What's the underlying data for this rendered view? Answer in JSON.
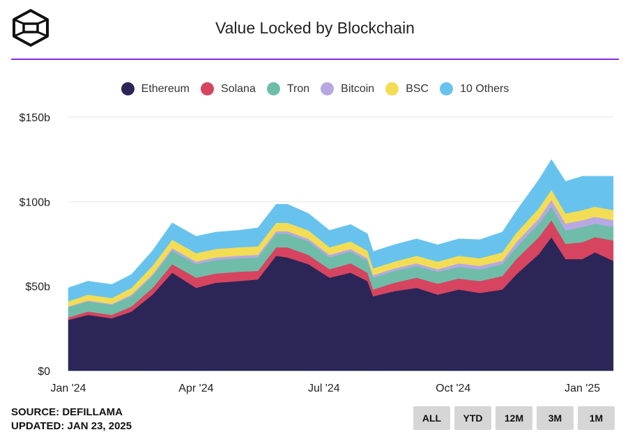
{
  "title": "Value Locked by Blockchain",
  "footer": {
    "source": "SOURCE: DEFILLAMA",
    "updated": "UPDATED: JAN 23, 2025"
  },
  "range_buttons": [
    "ALL",
    "YTD",
    "12M",
    "3M",
    "1M"
  ],
  "colors": {
    "accent_rule": "#8a2be2",
    "grid": "#e6e6e6"
  },
  "icons": {
    "logo": "cube-logo-icon"
  },
  "chart_data": {
    "type": "area",
    "stacked": true,
    "title": "Value Locked by Blockchain",
    "xlabel": "",
    "ylabel": "",
    "ylim": [
      0,
      150
    ],
    "y_unit": "billions USD",
    "y_ticks": [
      "$0",
      "$50b",
      "$100b",
      "$150b"
    ],
    "y_tick_values": [
      0,
      50,
      100,
      150
    ],
    "x_tick_labels": [
      "Jan '24",
      "Apr '24",
      "Jul '24",
      "Oct '24",
      "Jan '25"
    ],
    "x_tick_dates": [
      "2024-01-01",
      "2024-04-01",
      "2024-07-01",
      "2024-10-01",
      "2025-01-01"
    ],
    "x_range": [
      "2024-01-01",
      "2025-01-23"
    ],
    "grid": true,
    "legend_position": "top",
    "x": [
      "2024-01-01",
      "2024-01-15",
      "2024-02-01",
      "2024-02-15",
      "2024-03-01",
      "2024-03-15",
      "2024-04-01",
      "2024-04-15",
      "2024-05-01",
      "2024-05-15",
      "2024-05-28",
      "2024-06-05",
      "2024-06-20",
      "2024-07-05",
      "2024-07-20",
      "2024-08-01",
      "2024-08-05",
      "2024-08-20",
      "2024-09-05",
      "2024-09-20",
      "2024-10-05",
      "2024-10-20",
      "2024-11-05",
      "2024-11-15",
      "2024-12-01",
      "2024-12-10",
      "2024-12-20",
      "2025-01-01",
      "2025-01-10",
      "2025-01-23"
    ],
    "series": [
      {
        "name": "Ethereum",
        "color": "#2b2657",
        "values": [
          30,
          33,
          31,
          35,
          45,
          58,
          49,
          52,
          53,
          54,
          68,
          67,
          63,
          55,
          58,
          53,
          44,
          47,
          49,
          45,
          48,
          46,
          48,
          57,
          69,
          79,
          66,
          66,
          70,
          65
        ]
      },
      {
        "name": "Solana",
        "color": "#d6445f",
        "values": [
          1.5,
          2,
          2,
          3,
          4,
          5,
          6,
          5.5,
          5.5,
          5,
          5,
          6,
          5.5,
          5,
          5.5,
          5,
          4,
          5,
          6,
          6.5,
          6.5,
          7,
          8,
          9,
          10,
          10,
          9,
          10,
          9,
          12
        ]
      },
      {
        "name": "Tron",
        "color": "#6fbda8",
        "values": [
          6,
          6,
          6,
          6,
          7,
          8,
          8,
          8,
          8,
          8,
          8,
          8,
          8,
          7,
          7,
          7,
          7,
          7,
          7,
          7,
          7,
          7,
          7,
          7,
          8,
          8,
          8,
          9,
          8,
          8
        ]
      },
      {
        "name": "Bitcoin",
        "color": "#b7a8e3",
        "values": [
          0.5,
          0.5,
          0.5,
          1,
          1,
          1.5,
          1.5,
          1.5,
          1.5,
          1.5,
          1.5,
          1.5,
          1.5,
          1.5,
          1.5,
          1.5,
          1.5,
          1.5,
          1.5,
          1.5,
          2,
          2,
          2,
          3,
          3,
          4,
          4,
          4,
          4,
          4
        ]
      },
      {
        "name": "BSC",
        "color": "#f2dd55",
        "values": [
          3,
          3.5,
          3.5,
          4,
          5,
          5,
          5,
          5,
          5,
          5,
          5,
          5,
          5,
          4.5,
          4.5,
          4.5,
          4,
          4,
          4.5,
          4.5,
          4.5,
          4.5,
          5,
          5.5,
          6,
          6,
          6,
          6,
          6,
          6
        ]
      },
      {
        "name": "10 Others",
        "color": "#67c3ee",
        "values": [
          8,
          8,
          8,
          8,
          9,
          10,
          10,
          10,
          10,
          11,
          11,
          11,
          10,
          10,
          10,
          10,
          10,
          10,
          10,
          10,
          10,
          11,
          12,
          13,
          17,
          18,
          19,
          20,
          18,
          20
        ]
      }
    ]
  }
}
